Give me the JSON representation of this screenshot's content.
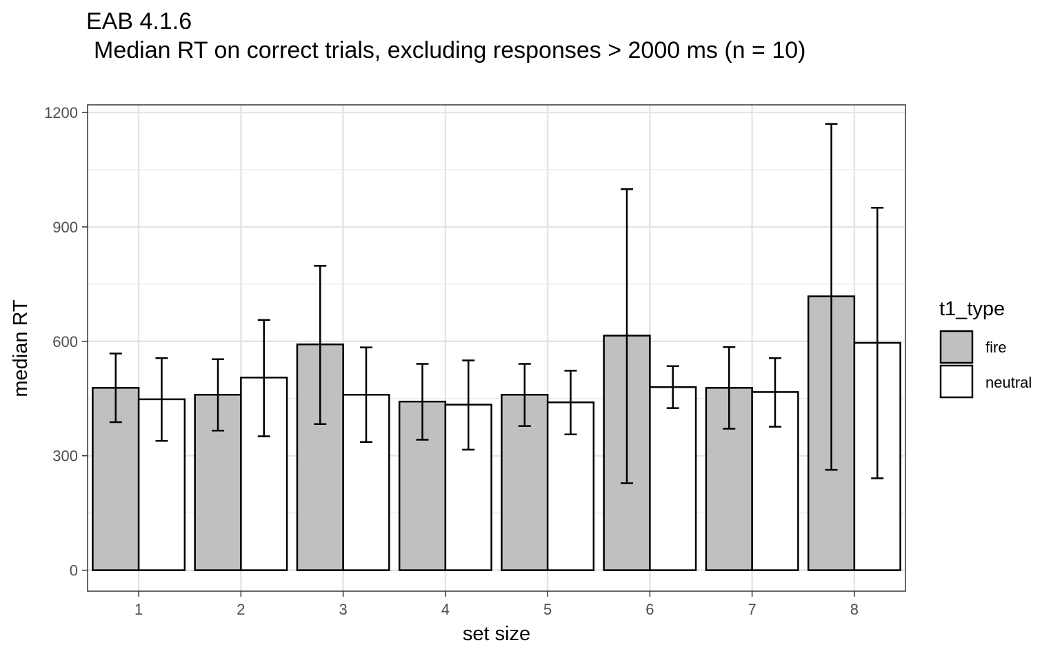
{
  "chart_data": {
    "type": "bar",
    "title": "EAB 4.1.6",
    "subtitle": "Median RT on correct trials, excluding responses > 2000 ms (n = 10)",
    "xlabel": "set size",
    "ylabel": "median RT",
    "categories": [
      "1",
      "2",
      "3",
      "4",
      "5",
      "6",
      "7",
      "8"
    ],
    "ylim": [
      -55,
      1220
    ],
    "yticks": [
      0,
      300,
      600,
      900,
      1200
    ],
    "grid": true,
    "legend": {
      "title": "t1_type",
      "placement": "right",
      "entries": [
        "fire",
        "neutral"
      ]
    },
    "series": [
      {
        "name": "fire",
        "color": "#c0c0c0",
        "values": [
          478,
          460,
          592,
          442,
          460,
          615,
          478,
          718
        ],
        "error_low": [
          388,
          366,
          383,
          342,
          378,
          228,
          371,
          263
        ],
        "error_high": [
          568,
          553,
          798,
          541,
          541,
          999,
          585,
          1170
        ]
      },
      {
        "name": "neutral",
        "color": "#ffffff",
        "values": [
          448,
          505,
          460,
          434,
          440,
          480,
          467,
          596
        ],
        "error_low": [
          339,
          351,
          336,
          316,
          356,
          425,
          376,
          241
        ],
        "error_high": [
          556,
          656,
          584,
          550,
          523,
          535,
          556,
          950
        ]
      }
    ]
  }
}
